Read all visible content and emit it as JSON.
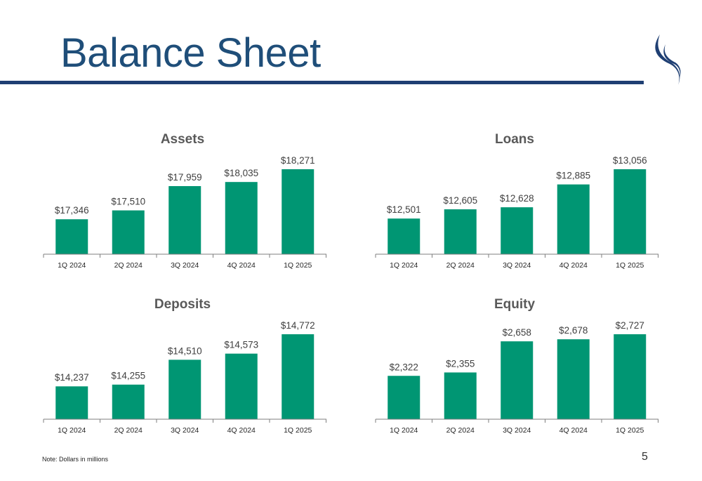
{
  "header": {
    "title": "Balance Sheet"
  },
  "footer": {
    "note": "Note: Dollars in millions",
    "page_number": "5"
  },
  "colors": {
    "bar": "#009673",
    "title": "#1f4e79",
    "rule": "#1f3f73",
    "axis": "#7f7f7f"
  },
  "chart_data": [
    {
      "type": "bar",
      "title": "Assets",
      "categories": [
        "1Q 2024",
        "2Q 2024",
        "3Q 2024",
        "4Q 2024",
        "1Q 2025"
      ],
      "values": [
        17346,
        17510,
        17959,
        18035,
        18271
      ],
      "labels": [
        "$17,346",
        "$17,510",
        "$17,959",
        "$18,035",
        "$18,271"
      ],
      "ylim": [
        16700,
        18271
      ],
      "xlabel": "",
      "ylabel": "",
      "grid": false
    },
    {
      "type": "bar",
      "title": "Loans",
      "categories": [
        "1Q 2024",
        "2Q 2024",
        "3Q 2024",
        "4Q 2024",
        "1Q 2025"
      ],
      "values": [
        12501,
        12605,
        12628,
        12885,
        13056
      ],
      "labels": [
        "$12,501",
        "$12,605",
        "$12,628",
        "$12,885",
        "$13,056"
      ],
      "ylim": [
        12100,
        13056
      ],
      "xlabel": "",
      "ylabel": "",
      "grid": false
    },
    {
      "type": "bar",
      "title": "Deposits",
      "categories": [
        "1Q 2024",
        "2Q 2024",
        "3Q 2024",
        "4Q 2024",
        "1Q 2025"
      ],
      "values": [
        14237,
        14255,
        14510,
        14573,
        14772
      ],
      "labels": [
        "$14,237",
        "$14,255",
        "$14,510",
        "$14,573",
        "$14,772"
      ],
      "ylim": [
        13900,
        14772
      ],
      "xlabel": "",
      "ylabel": "",
      "grid": false
    },
    {
      "type": "bar",
      "title": "Equity",
      "categories": [
        "1Q 2024",
        "2Q 2024",
        "3Q 2024",
        "4Q 2024",
        "1Q 2025"
      ],
      "values": [
        2322,
        2355,
        2658,
        2678,
        2727
      ],
      "labels": [
        "$2,322",
        "$2,355",
        "$2,658",
        "$2,678",
        "$2,727"
      ],
      "ylim": [
        1900,
        2727
      ],
      "xlabel": "",
      "ylabel": "",
      "grid": false
    }
  ]
}
